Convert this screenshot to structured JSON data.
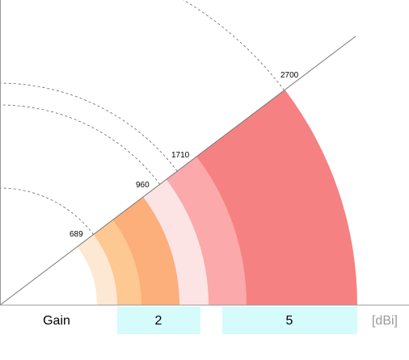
{
  "labels": {
    "gain": "Gain",
    "unit": "[dBi]"
  },
  "gain_values": [
    2,
    5
  ],
  "frequencies": [
    689,
    960,
    1710,
    2700
  ]
}
